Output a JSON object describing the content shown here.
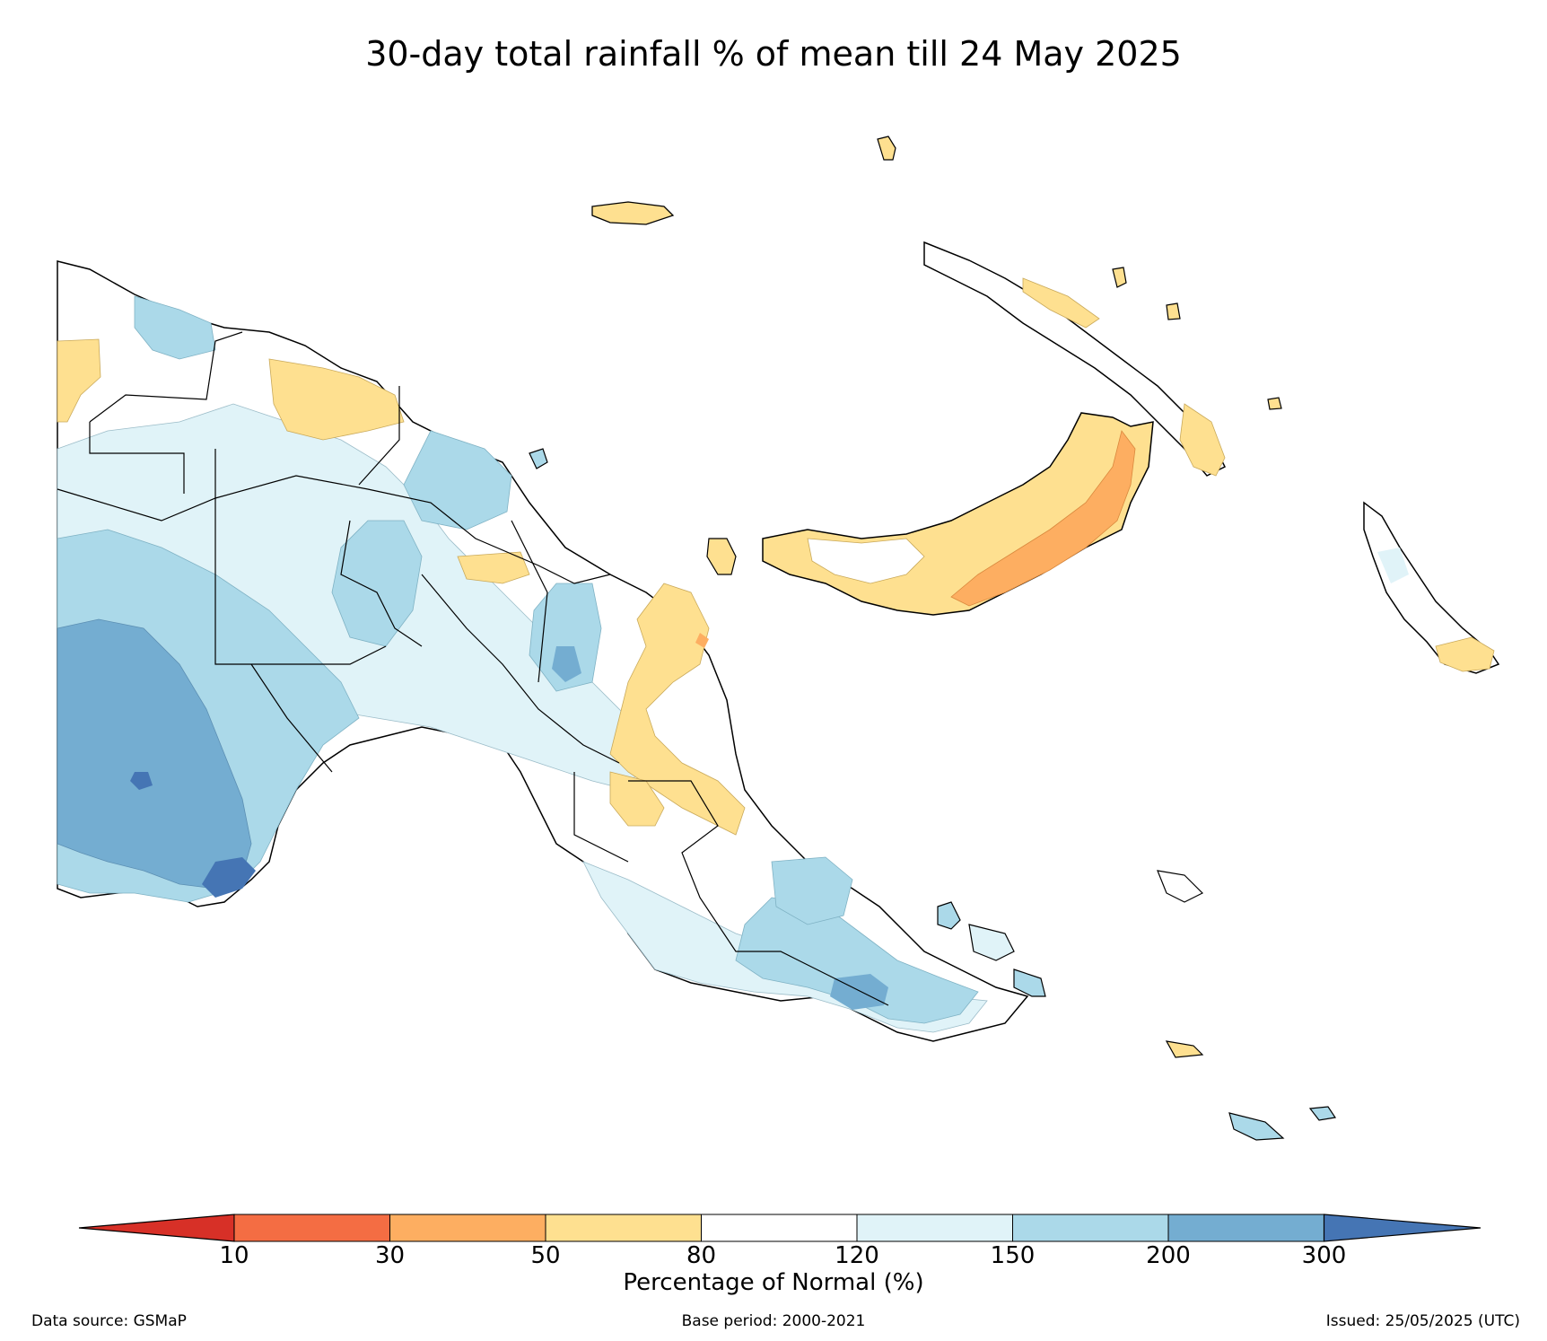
{
  "title": "30-day total rainfall % of mean till 24 May 2025",
  "colorbar": {
    "label": "Percentage of Normal (%)",
    "ticks": [
      "10",
      "30",
      "50",
      "80",
      "120",
      "150",
      "200",
      "300"
    ],
    "colors": {
      "below_10": "#d73027",
      "10_30": "#f46d43",
      "30_50": "#fdae61",
      "50_80": "#fee090",
      "80_120": "#ffffff",
      "120_150": "#e0f3f8",
      "150_200": "#abd9e9",
      "200_300": "#74add1",
      "above_300": "#4575b4"
    }
  },
  "footer": {
    "source": "Data source: GSMaP",
    "base_period": "Base period: 2000-2021",
    "issued": "Issued: 25/05/2025 (UTC)"
  }
}
